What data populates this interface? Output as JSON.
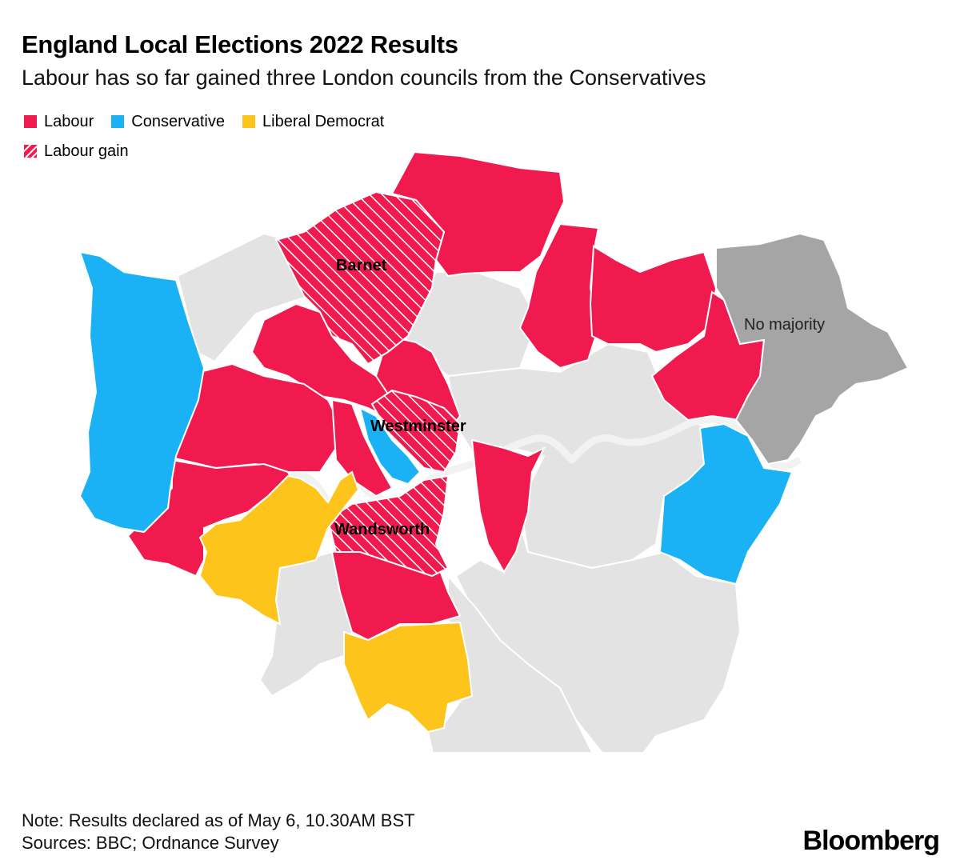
{
  "header": {
    "title": "England Local Elections 2022 Results",
    "subtitle": "Labour has so far gained three London councils from the Conservatives"
  },
  "legend": {
    "items": [
      {
        "label": "Labour",
        "color": "#f01a4e",
        "pattern": "solid"
      },
      {
        "label": "Conservative",
        "color": "#1ab2f5",
        "pattern": "solid"
      },
      {
        "label": "Liberal Democrat",
        "color": "#fdc51b",
        "pattern": "solid"
      },
      {
        "label": "Labour gain",
        "color": "#f01a4e",
        "pattern": "hatched"
      }
    ]
  },
  "map": {
    "colors": {
      "labour": "#f01a4e",
      "conservative": "#1ab2f5",
      "liberal_democrat": "#fdc51b",
      "no_majority": "#a5a5a5",
      "not_declared": "#e3e3e3",
      "river": "#f2f2f2"
    },
    "labels": {
      "barnet": "Barnet",
      "westminster": "Westminster",
      "wandsworth": "Wandsworth",
      "no_majority": "No majority"
    }
  },
  "footer": {
    "note": "Note: Results declared as of May 6, 10.30AM BST",
    "sources": "Sources: BBC; Ordnance Survey",
    "brand": "Bloomberg"
  }
}
